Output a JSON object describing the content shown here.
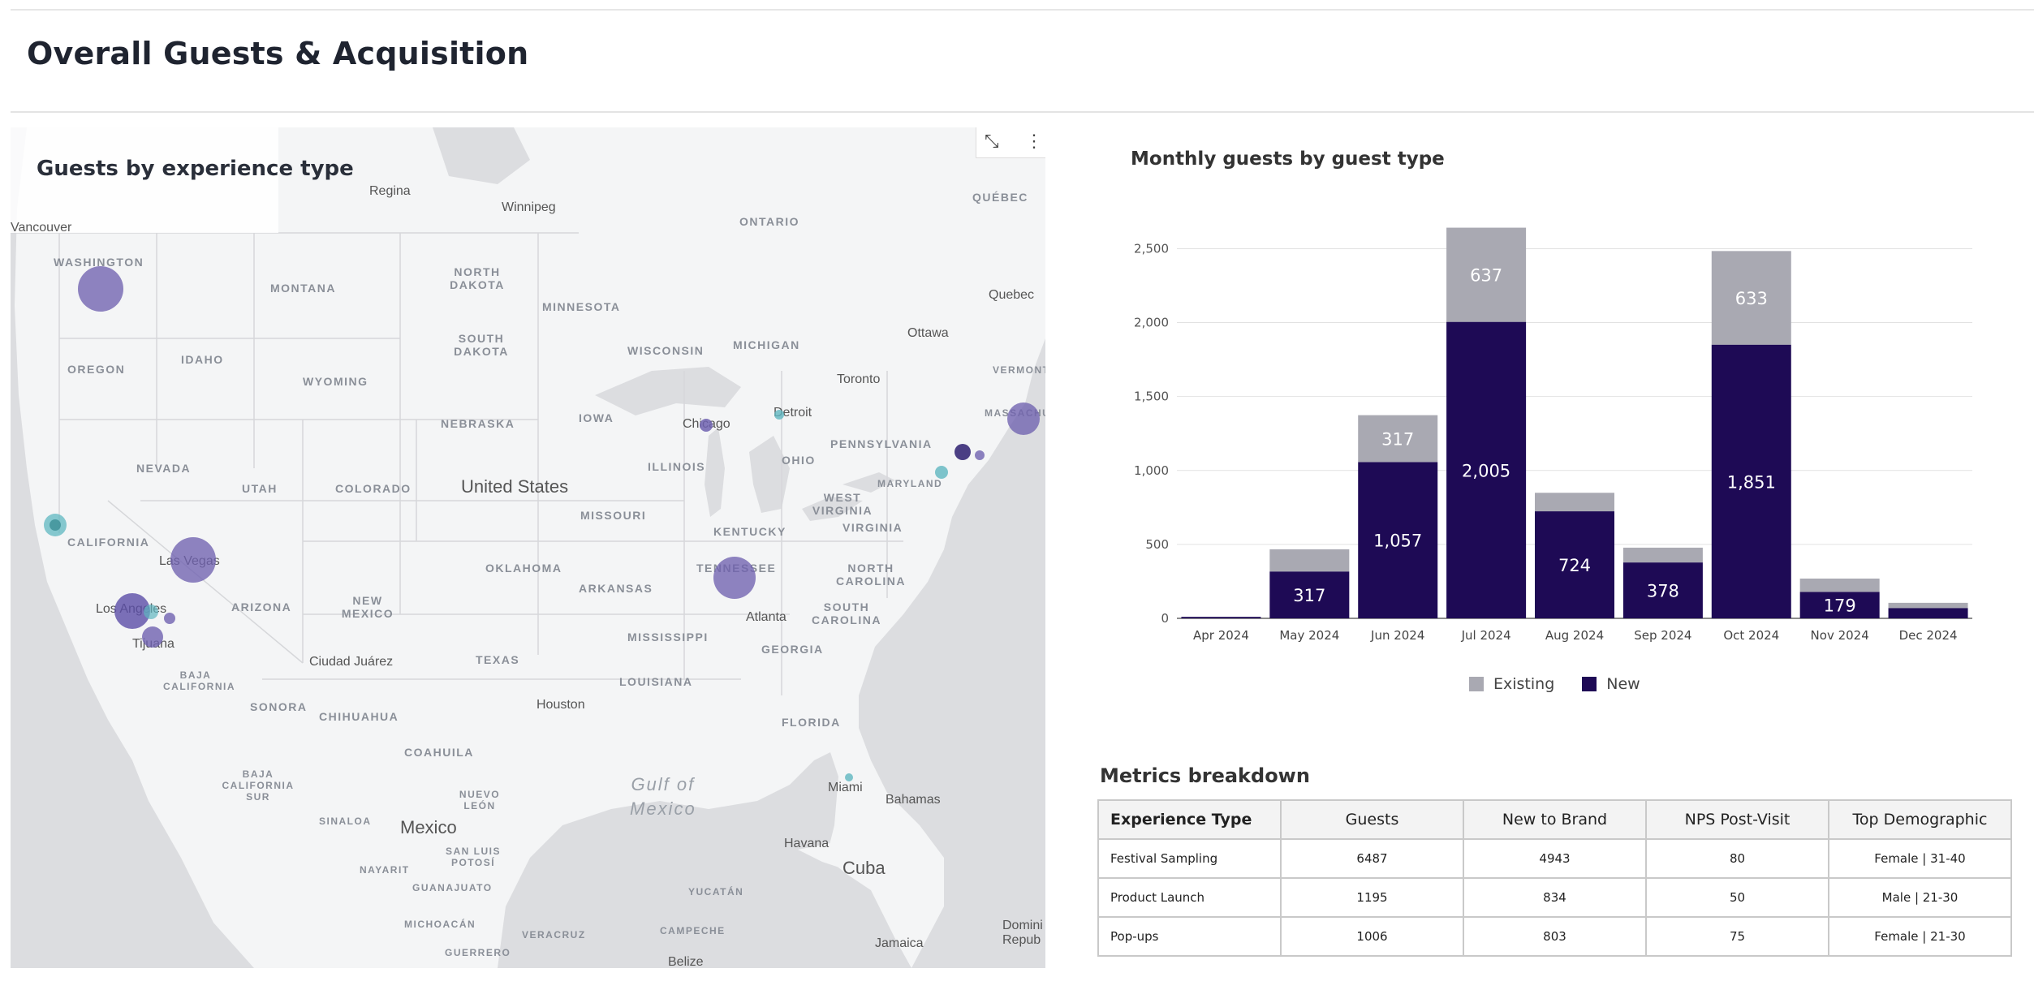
{
  "page": {
    "title": "Overall Guests & Acquisition"
  },
  "map": {
    "title": "Guests by experience type",
    "controls": {
      "expand_icon": "expand-icon",
      "more_icon": "more-vertical-icon"
    },
    "state_labels": [
      "WASHINGTON",
      "MONTANA",
      "NORTH DAKOTA",
      "MINNESOTA",
      "OREGON",
      "IDAHO",
      "SOUTH DAKOTA",
      "WYOMING",
      "WISCONSIN",
      "MICHIGAN",
      "NEBRASKA",
      "IOWA",
      "NEVADA",
      "UTAH",
      "COLORADO",
      "ILLINOIS",
      "OHIO",
      "PENNSYLVANIA",
      "CALIFORNIA",
      "MISSOURI",
      "KENTUCKY",
      "WEST VIRGINIA",
      "VIRGINIA",
      "MARYLAND",
      "ARIZONA",
      "NEW MEXICO",
      "OKLAHOMA",
      "ARKANSAS",
      "TENNESSEE",
      "NORTH CAROLINA",
      "SOUTH CAROLINA",
      "MISSISSIPPI",
      "GEORGIA",
      "TEXAS",
      "LOUISIANA",
      "FLORIDA",
      "ONTARIO",
      "QUÉBEC",
      "VERMONT",
      "MASSACHUSETTS",
      "SONORA",
      "CHIHUAHUA",
      "COAHUILA",
      "NUEVO LEÓN",
      "BAJA CALIFORNIA",
      "BAJA CALIFORNIA SUR",
      "SINALOA",
      "SAN LUIS POTOSÍ",
      "NAYARIT",
      "GUANAJUATO",
      "MICHOACÁN",
      "VERACRUZ",
      "GUERRERO",
      "CAMPECHE",
      "YUCATÁN"
    ],
    "city_labels": [
      "Regina",
      "Winnipeg",
      "Vancouver",
      "Quebec",
      "Ottawa",
      "Toronto",
      "Detroit",
      "Chicago",
      "Las Vegas",
      "Los Angeles",
      "Tijuana",
      "Atlanta",
      "Houston",
      "Ciudad Juárez",
      "Miami",
      "Bahamas",
      "Havana",
      "Jamaica",
      "Belize",
      "Domini Repub"
    ],
    "big_labels": [
      "United States",
      "Mexico",
      "Cuba"
    ],
    "water_labels": [
      "Gulf of",
      "Mexico"
    ]
  },
  "chart": {
    "title": "Monthly guests by guest type",
    "legend": {
      "existing": "Existing",
      "new": "New"
    },
    "colors": {
      "existing": "#a9a9b2",
      "new": "#1e0a55"
    },
    "y_ticks": [
      "0",
      "500",
      "1,000",
      "1,500",
      "2,000",
      "2,500"
    ],
    "data_labels": {
      "new": [
        "",
        "317",
        "1,057",
        "2,005",
        "724",
        "378",
        "1,851",
        "179",
        ""
      ],
      "existing": [
        "",
        "",
        "317",
        "637",
        "",
        "",
        "633",
        "",
        ""
      ]
    }
  },
  "chart_data": {
    "type": "bar",
    "stacked": true,
    "title": "Monthly guests by guest type",
    "categories": [
      "Apr 2024",
      "May 2024",
      "Jun 2024",
      "Jul 2024",
      "Aug 2024",
      "Sep 2024",
      "Oct 2024",
      "Nov 2024",
      "Dec 2024"
    ],
    "series": [
      {
        "name": "New",
        "values": [
          10,
          317,
          1057,
          2005,
          724,
          378,
          1851,
          179,
          70
        ]
      },
      {
        "name": "Existing",
        "values": [
          0,
          150,
          317,
          637,
          125,
          100,
          633,
          90,
          35
        ]
      }
    ],
    "ylim": [
      0,
      2700
    ],
    "grid": true,
    "legend": "bottom"
  },
  "metrics": {
    "title": "Metrics breakdown",
    "headers": [
      "Experience Type",
      "Guests",
      "New to Brand",
      "NPS Post-Visit",
      "Top Demographic"
    ],
    "rows": [
      [
        "Festival Sampling",
        "6487",
        "4943",
        "80",
        "Female | 31-40"
      ],
      [
        "Product Launch",
        "1195",
        "834",
        "50",
        "Male | 21-30"
      ],
      [
        "Pop-ups",
        "1006",
        "803",
        "75",
        "Female | 21-30"
      ]
    ]
  }
}
